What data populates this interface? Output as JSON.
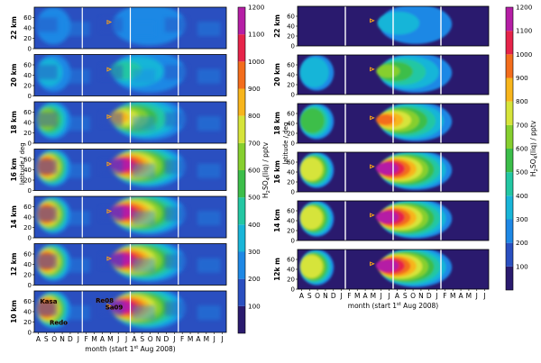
{
  "figure": {
    "y_ticks": [
      "0",
      "20",
      "40",
      "60"
    ],
    "colorbar_label": "H2SO4(liq) / pptv",
    "colorbar_label_main": "H",
    "colorbar_label_sub1": "2",
    "colorbar_label_mid": "SO",
    "colorbar_label_sub2": "4",
    "colorbar_label_tail": "(liq) / pptv",
    "colorbar_ticks": [
      "100",
      "200",
      "300",
      "400",
      "500",
      "600",
      "700",
      "800",
      "900",
      "1000",
      "1100",
      "1200"
    ],
    "colorbar_colors": [
      "#2a1a6e",
      "#2a4fc0",
      "#1e88e5",
      "#19b5d8",
      "#23c7a3",
      "#3cbe4a",
      "#86cf2f",
      "#d6e43a",
      "#f7b51c",
      "#f36d1c",
      "#e6244a",
      "#b51ea5"
    ]
  },
  "chart_data": [
    {
      "type": "heatmap",
      "name": "left",
      "xlabel": "month (start 1st Aug 2008)",
      "xlabel_pre": "month (start 1",
      "xlabel_sup": "st",
      "xlabel_post": " Aug 2008)",
      "ylabel": "latitude / deg",
      "x_ticks": [
        "A",
        "S",
        "O",
        "N",
        "D",
        "J",
        "F",
        "M",
        "A",
        "M",
        "J",
        "J",
        "A",
        "S",
        "O",
        "N",
        "D",
        "J",
        "F",
        "M",
        "A",
        "M",
        "J",
        "J"
      ],
      "ylim": [
        0,
        80
      ],
      "panels": [
        {
          "label": "22 km",
          "peak_value": 250
        },
        {
          "label": "20 km",
          "peak_value": 450
        },
        {
          "label": "18 km",
          "peak_value": 800
        },
        {
          "label": "16 km",
          "peak_value": 1200
        },
        {
          "label": "14 km",
          "peak_value": 1200
        },
        {
          "label": "12 km",
          "peak_value": 1200
        },
        {
          "label": "10 km",
          "peak_value": 1200
        }
      ],
      "annotations": [
        {
          "text": "Kasa",
          "panel": "10 km"
        },
        {
          "text": "Redo",
          "panel": "10 km"
        },
        {
          "text": "Re08",
          "panel": "10 km"
        },
        {
          "text": "Sa09",
          "panel": "10 km"
        }
      ]
    },
    {
      "type": "heatmap",
      "name": "right",
      "xlabel": "month (start 1st Aug 2008)",
      "xlabel_pre": "month (start 1",
      "xlabel_sup": "st",
      "xlabel_post": " Aug 2008)",
      "ylabel": "latitude / deg",
      "x_ticks": [
        "A",
        "S",
        "O",
        "N",
        "D",
        "J",
        "F",
        "M",
        "A",
        "M",
        "J",
        "J",
        "A",
        "S",
        "O",
        "N",
        "D",
        "J",
        "F",
        "M",
        "A",
        "M",
        "J",
        "J"
      ],
      "ylim": [
        0,
        80
      ],
      "panels": [
        {
          "label": "22 km",
          "peak_value": 300
        },
        {
          "label": "20 km",
          "peak_value": 600
        },
        {
          "label": "18 km",
          "peak_value": 900
        },
        {
          "label": "16 km",
          "peak_value": 1200
        },
        {
          "label": "14 km",
          "peak_value": 1200
        },
        {
          "label": "12k m",
          "peak_value": 1200
        }
      ]
    }
  ]
}
